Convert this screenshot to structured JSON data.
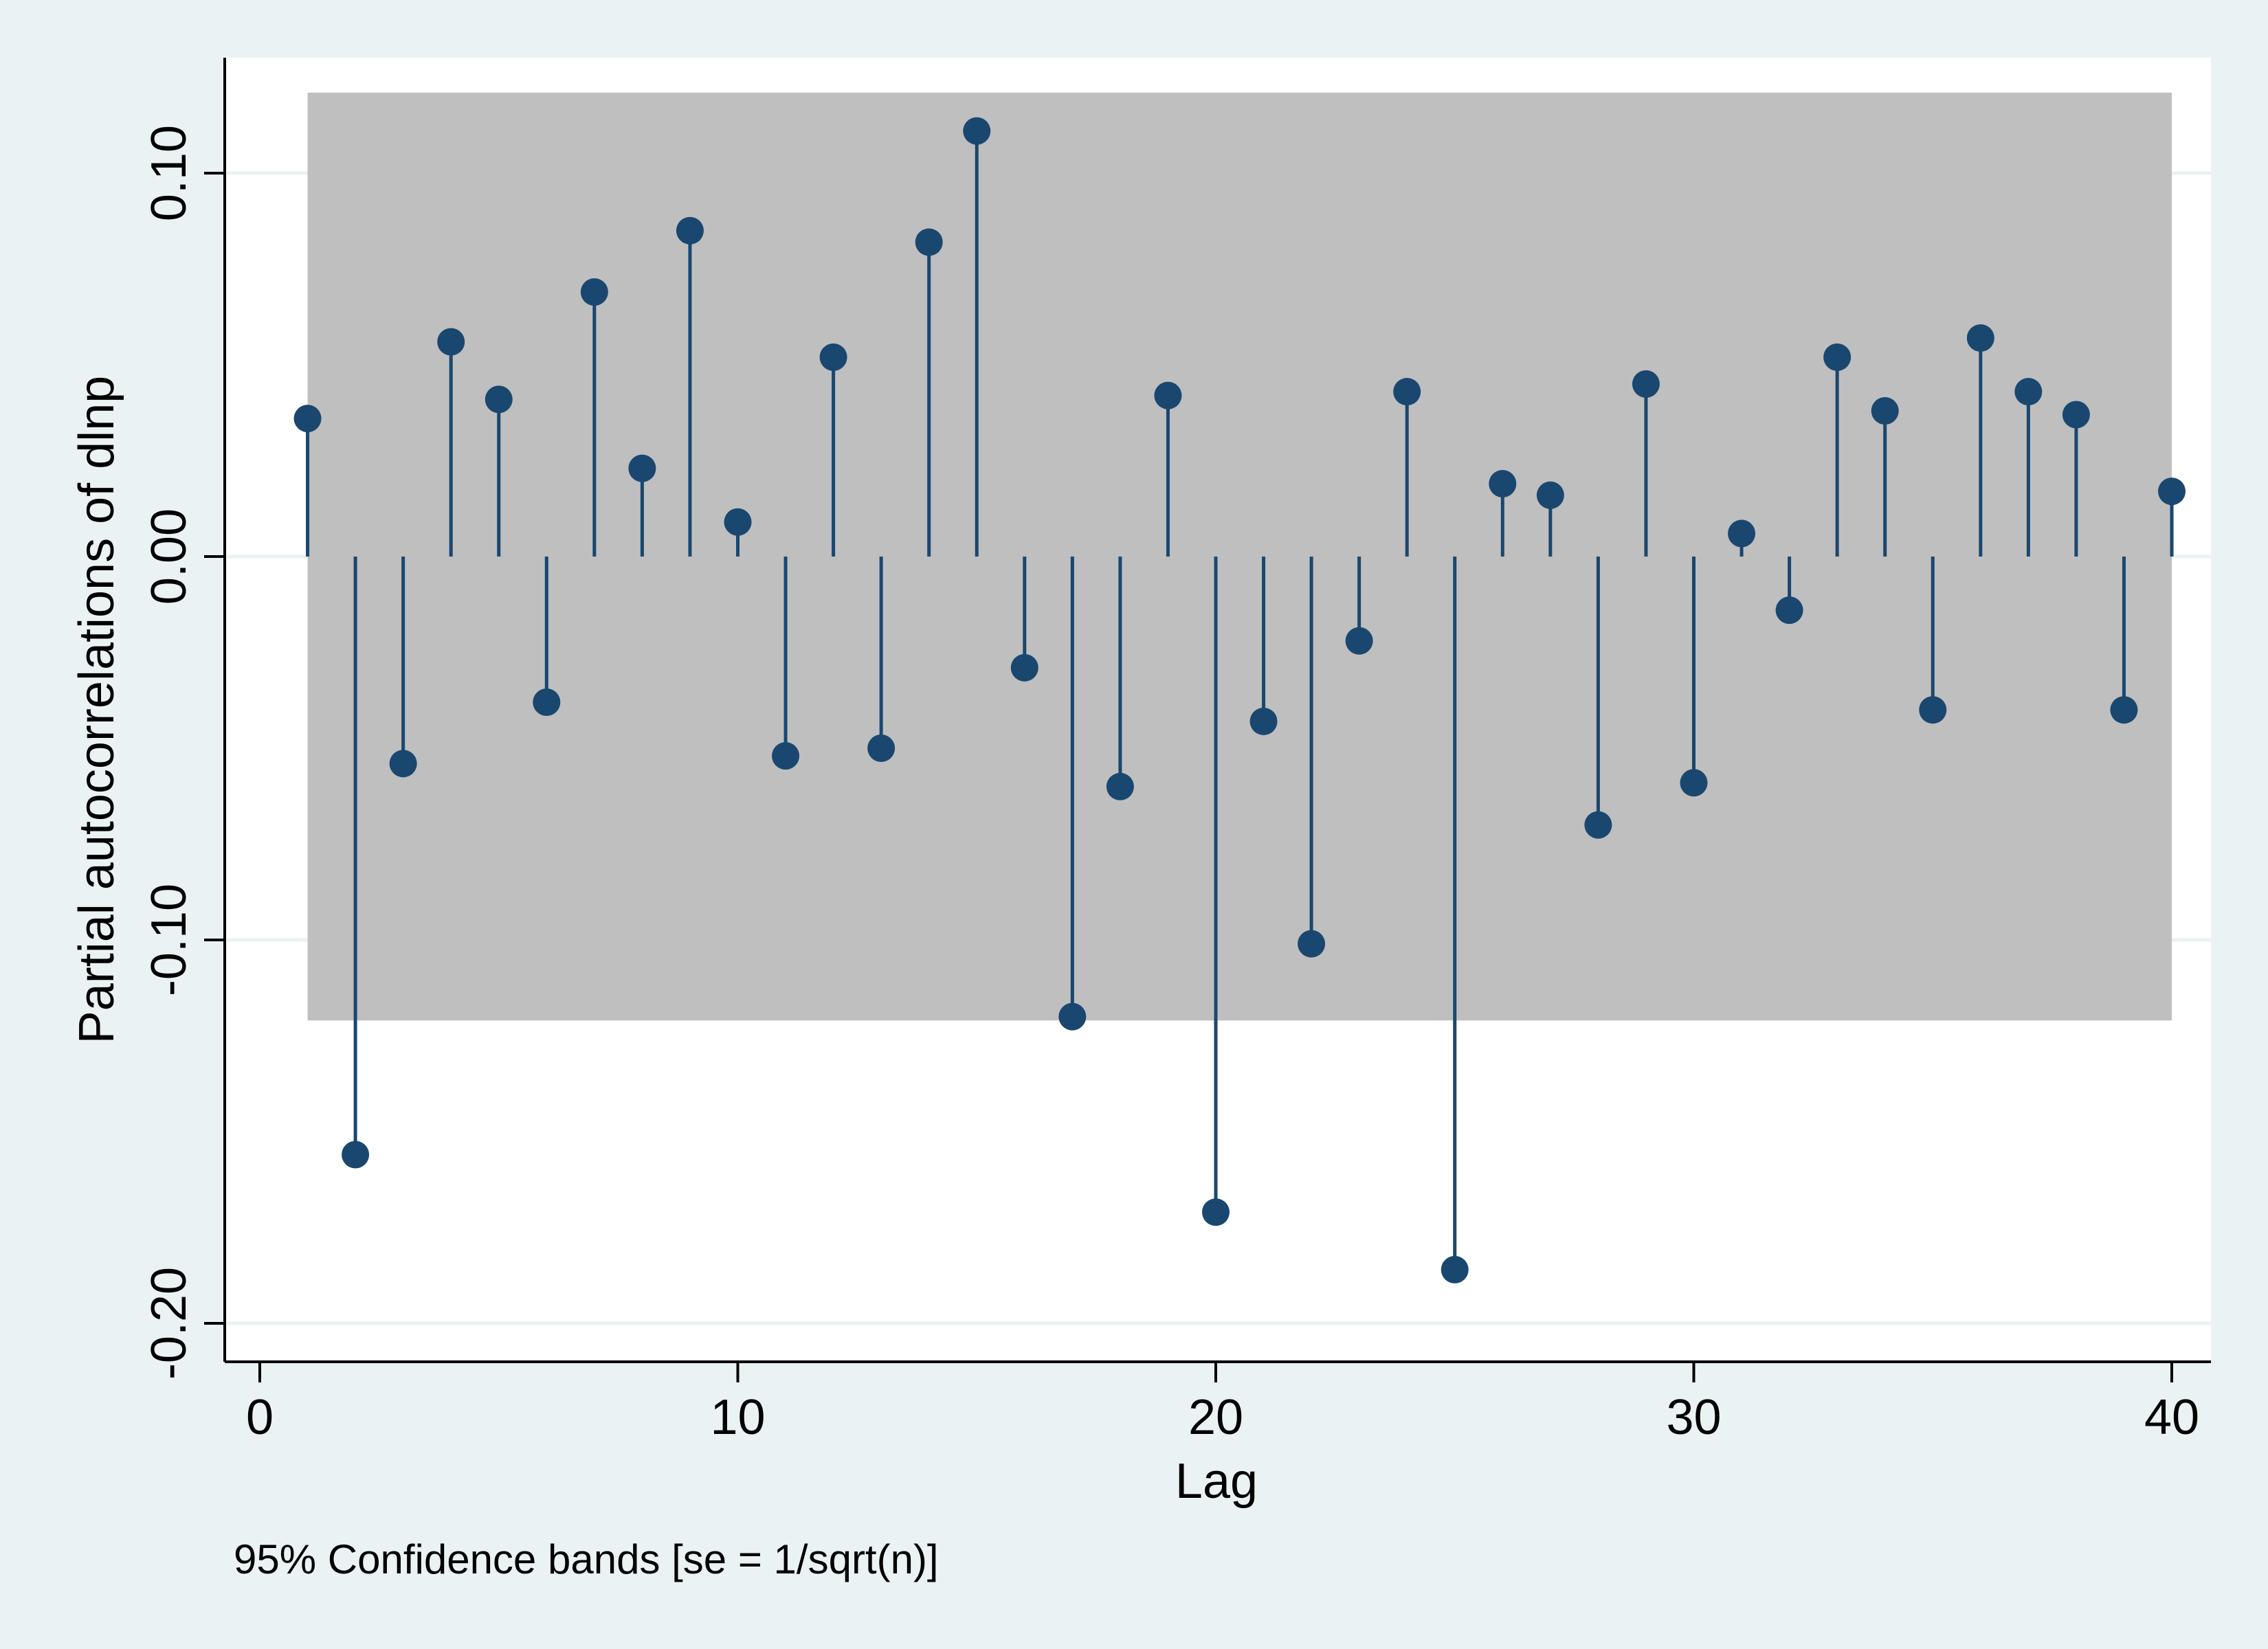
{
  "chart_data": {
    "type": "stem",
    "ylabel": "Partial autocorrelations of dlnp",
    "xlabel": "Lag",
    "note": "95% Confidence bands [se = 1/sqrt(n)]",
    "xlim": [
      0,
      40
    ],
    "ylim": [
      -0.2,
      0.1
    ],
    "xticks": [
      0,
      10,
      20,
      30,
      40
    ],
    "yticks": [
      -0.2,
      -0.1,
      0.0,
      0.1
    ],
    "xtick_labels": [
      "0",
      "10",
      "20",
      "30",
      "40"
    ],
    "ytick_labels": [
      "-0.20",
      "-0.10",
      "0.00",
      "0.10"
    ],
    "grid": "horizontal",
    "confidence_band": {
      "lower": -0.121,
      "upper": 0.121,
      "from_lag": 1,
      "to_lag": 40
    },
    "lags": [
      1,
      2,
      3,
      4,
      5,
      6,
      7,
      8,
      9,
      10,
      11,
      12,
      13,
      14,
      15,
      16,
      17,
      18,
      19,
      20,
      21,
      22,
      23,
      24,
      25,
      26,
      27,
      28,
      29,
      30,
      31,
      32,
      33,
      34,
      35,
      36,
      37,
      38,
      39,
      40
    ],
    "values": [
      0.036,
      -0.156,
      -0.054,
      0.056,
      0.041,
      -0.038,
      0.069,
      0.023,
      0.085,
      0.009,
      -0.052,
      0.052,
      -0.05,
      0.082,
      0.111,
      -0.029,
      -0.12,
      -0.06,
      0.042,
      -0.171,
      -0.043,
      -0.101,
      -0.022,
      0.043,
      -0.186,
      0.019,
      0.016,
      -0.07,
      0.045,
      -0.059,
      0.006,
      -0.014,
      0.052,
      0.038,
      -0.04,
      0.057,
      0.043,
      0.037,
      -0.04,
      0.017
    ],
    "colors": {
      "band": "#bfbfbf",
      "stem": "#1a476f",
      "plot_bg": "#ffffff",
      "outer_bg": "#eaf2f3",
      "grid": "#eaf2f3"
    }
  }
}
